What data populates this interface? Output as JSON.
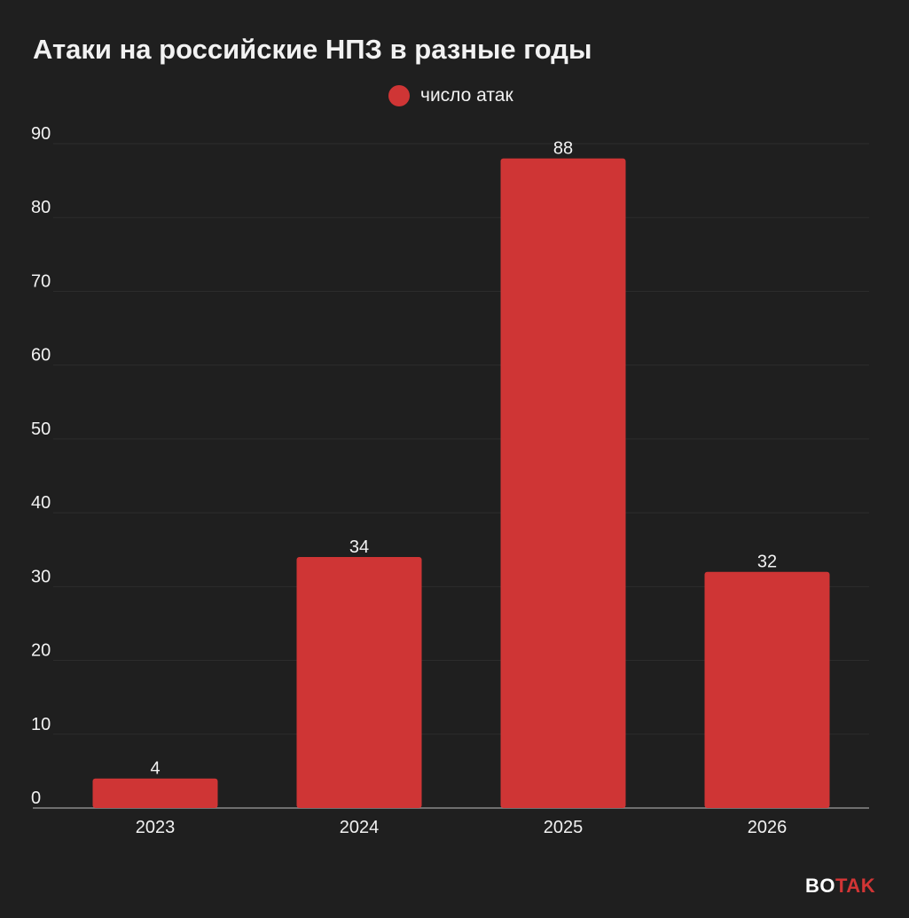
{
  "chart_data": {
    "type": "bar",
    "title": "Атаки на российские НПЗ в разные годы",
    "categories": [
      "2023",
      "2024",
      "2025",
      "2026"
    ],
    "series": [
      {
        "name": "число атак",
        "values": [
          4,
          34,
          88,
          32
        ]
      }
    ],
    "ylim": [
      0,
      90
    ],
    "yticks": [
      0,
      10,
      20,
      30,
      40,
      50,
      60,
      70,
      80,
      90
    ],
    "xlabel": "",
    "ylabel": "",
    "grid": true,
    "legend": "top-center",
    "data_labels": true,
    "colors": {
      "bar": "#cf3535",
      "background": "#1f1f1f",
      "text": "#f2f2f2",
      "grid": "#2c2c2c",
      "axis": "#8a8a8a"
    }
  },
  "logo": {
    "part1": "BO",
    "part2": "TAK"
  }
}
